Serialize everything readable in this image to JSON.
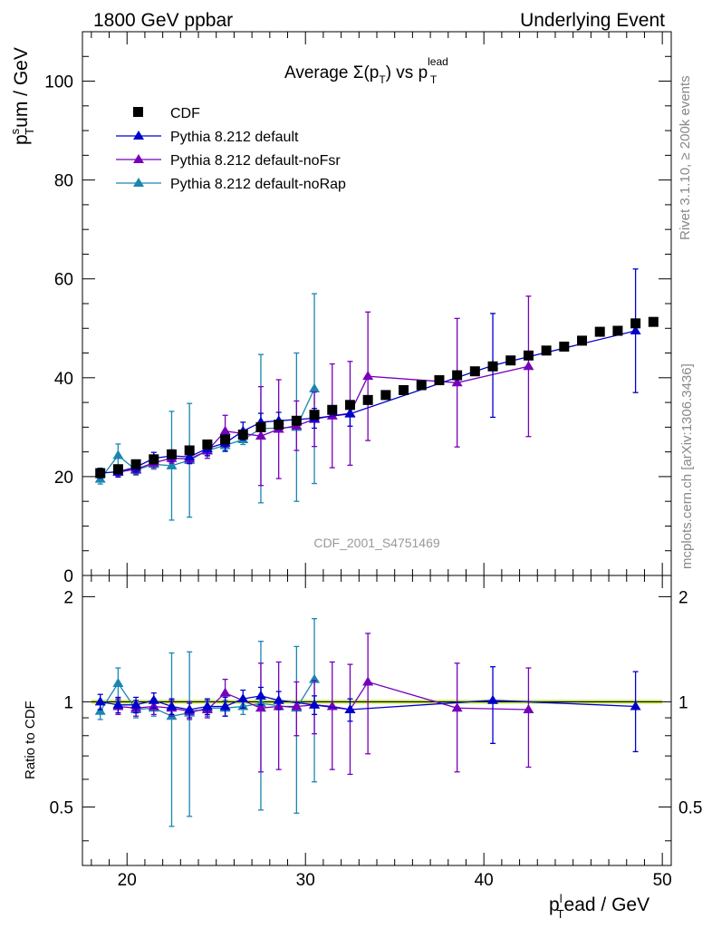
{
  "header": {
    "left_title": "1800 GeV ppbar",
    "right_title": "Underlying Event"
  },
  "side_labels": {
    "rivet": "Rivet 3.1.10, ≥ 200k events",
    "mcplots": "mcplots.cern.ch [arXiv:1306.3436]"
  },
  "chart_data": [
    {
      "type": "scatter",
      "name": "main",
      "title_main": "Average Σ(p",
      "title_sub_T": "T",
      "title_mid": ") vs p",
      "title_sup": "lead",
      "title_sub2": "T",
      "ylabel_main": "p",
      "ylabel_sup": "s",
      "ylabel_sub": "T",
      "ylabel_rest": "um / GeV",
      "watermark": "CDF_2001_S4751469",
      "xlim": [
        17.5,
        50.5
      ],
      "ylim": [
        0,
        110
      ],
      "yticks": [
        0,
        20,
        40,
        60,
        80,
        100
      ],
      "ytick_labels": [
        "0",
        "20",
        "40",
        "60",
        "80",
        "100"
      ],
      "legend": [
        {
          "label": "CDF",
          "color": "#000000",
          "marker": "square"
        },
        {
          "label": "Pythia 8.212 default",
          "color": "#0000cc",
          "marker": "triangle"
        },
        {
          "label": "Pythia 8.212 default-noFsr",
          "color": "#7700bb",
          "marker": "triangle"
        },
        {
          "label": "Pythia 8.212 default-noRap",
          "color": "#1a86b0",
          "marker": "triangle"
        }
      ],
      "series": [
        {
          "name": "CDF",
          "color": "#000000",
          "x": [
            18.5,
            19.5,
            20.5,
            21.5,
            22.5,
            23.5,
            24.5,
            25.5,
            26.5,
            27.5,
            28.5,
            29.5,
            30.5,
            31.5,
            32.5,
            33.5,
            34.5,
            35.5,
            36.5,
            37.5,
            38.5,
            39.5,
            40.5,
            41.5,
            42.5,
            43.5,
            44.5,
            45.5,
            46.5,
            47.5,
            48.5,
            49.5
          ],
          "y": [
            20.7,
            21.5,
            22.5,
            23.5,
            24.5,
            25.3,
            26.5,
            27.5,
            28.5,
            30.0,
            30.5,
            31.3,
            32.5,
            33.5,
            34.5,
            35.5,
            36.5,
            37.5,
            38.5,
            39.5,
            40.5,
            41.3,
            42.3,
            43.5,
            44.5,
            45.5,
            46.3,
            47.5,
            49.3,
            49.5,
            51.0,
            51.3
          ]
        },
        {
          "name": "Pythia 8.212 default",
          "color": "#0000cc",
          "x": [
            18.5,
            19.5,
            20.5,
            21.5,
            22.5,
            23.5,
            24.5,
            25.5,
            26.5,
            27.5,
            28.5,
            30.5,
            32.5,
            40.5,
            48.5
          ],
          "y": [
            20.7,
            21.0,
            21.9,
            23.7,
            24.2,
            24.0,
            25.7,
            26.8,
            29.2,
            31.0,
            31.3,
            31.8,
            32.7,
            42.5,
            49.5
          ],
          "err": [
            1.0,
            1.0,
            1.0,
            1.2,
            1.2,
            1.3,
            1.5,
            1.7,
            1.8,
            1.8,
            1.7,
            2.0,
            2.5,
            10.5,
            12.5
          ]
        },
        {
          "name": "Pythia 8.212 default-noFsr",
          "color": "#7700bb",
          "x": [
            19.5,
            20.5,
            21.5,
            22.5,
            23.5,
            24.5,
            25.5,
            27.5,
            28.5,
            29.5,
            30.5,
            31.5,
            32.5,
            33.5,
            38.5,
            42.5
          ],
          "y": [
            20.9,
            21.5,
            22.8,
            23.7,
            23.6,
            25.2,
            29.2,
            28.2,
            29.6,
            30.3,
            31.6,
            32.3,
            32.8,
            40.3,
            39.0,
            42.3
          ],
          "err": [
            1.0,
            1.0,
            1.0,
            1.0,
            1.0,
            1.5,
            3.2,
            10.0,
            10.0,
            5.0,
            5.5,
            10.5,
            10.5,
            13.0,
            13.0,
            14.2
          ]
        },
        {
          "name": "Pythia 8.212 default-noRap",
          "color": "#1a86b0",
          "x": [
            18.5,
            19.5,
            20.5,
            21.5,
            22.5,
            23.5,
            24.5,
            25.5,
            26.5,
            27.5,
            29.5,
            30.5
          ],
          "y": [
            19.5,
            24.3,
            21.3,
            22.5,
            22.2,
            23.3,
            25.3,
            26.3,
            27.5,
            29.7,
            30.0,
            37.8
          ],
          "err": [
            1.0,
            2.3,
            1.0,
            1.0,
            11.0,
            11.5,
            1.0,
            1.0,
            1.0,
            15.0,
            15.0,
            19.2
          ]
        }
      ]
    },
    {
      "type": "scatter",
      "name": "ratio",
      "ylabel": "Ratio to CDF",
      "xlabel_main": "p",
      "xlabel_sup": "l",
      "xlabel_sub": "T",
      "xlabel_rest": "ead / GeV",
      "xlim": [
        17.5,
        50.5
      ],
      "ylim": [
        0.34,
        2.3
      ],
      "yticks": [
        0.5,
        1,
        2
      ],
      "ytick_labels": [
        "0.5",
        "1",
        "2"
      ],
      "xticks": [
        20,
        30,
        40,
        50
      ],
      "xtick_labels": [
        "20",
        "30",
        "40",
        "50"
      ],
      "band_color": "#ccee55",
      "reference_line": 1,
      "series": [
        {
          "name": "Pythia 8.212 default",
          "color": "#0000cc",
          "x": [
            18.5,
            19.5,
            20.5,
            21.5,
            22.5,
            23.5,
            24.5,
            25.5,
            26.5,
            27.5,
            28.5,
            30.5,
            32.5,
            40.5,
            48.5
          ],
          "y": [
            1.0,
            0.98,
            0.98,
            1.01,
            0.97,
            0.95,
            0.97,
            0.97,
            1.02,
            1.04,
            1.01,
            0.98,
            0.95,
            1.01,
            0.97
          ],
          "err": [
            0.05,
            0.05,
            0.05,
            0.05,
            0.05,
            0.05,
            0.05,
            0.06,
            0.06,
            0.06,
            0.06,
            0.06,
            0.07,
            0.25,
            0.25
          ]
        },
        {
          "name": "Pythia 8.212 default-noFsr",
          "color": "#7700bb",
          "x": [
            19.5,
            20.5,
            21.5,
            22.5,
            23.5,
            24.5,
            25.5,
            27.5,
            28.5,
            29.5,
            30.5,
            31.5,
            32.5,
            33.5,
            38.5,
            42.5
          ],
          "y": [
            0.97,
            0.96,
            0.97,
            0.96,
            0.94,
            0.95,
            1.06,
            0.96,
            0.97,
            0.97,
            0.98,
            0.97,
            0.95,
            1.14,
            0.96,
            0.95
          ],
          "err": [
            0.05,
            0.05,
            0.05,
            0.05,
            0.05,
            0.05,
            0.1,
            0.33,
            0.33,
            0.17,
            0.17,
            0.33,
            0.33,
            0.43,
            0.33,
            0.3
          ]
        },
        {
          "name": "Pythia 8.212 default-noRap",
          "color": "#1a86b0",
          "x": [
            18.5,
            19.5,
            20.5,
            21.5,
            22.5,
            23.5,
            24.5,
            25.5,
            26.5,
            27.5,
            29.5,
            30.5
          ],
          "y": [
            0.94,
            1.13,
            0.95,
            0.96,
            0.91,
            0.93,
            0.96,
            0.96,
            0.97,
            0.99,
            0.96,
            1.16
          ],
          "err": [
            0.05,
            0.12,
            0.05,
            0.05,
            0.47,
            0.46,
            0.05,
            0.05,
            0.05,
            0.5,
            0.48,
            0.57
          ]
        }
      ]
    }
  ]
}
